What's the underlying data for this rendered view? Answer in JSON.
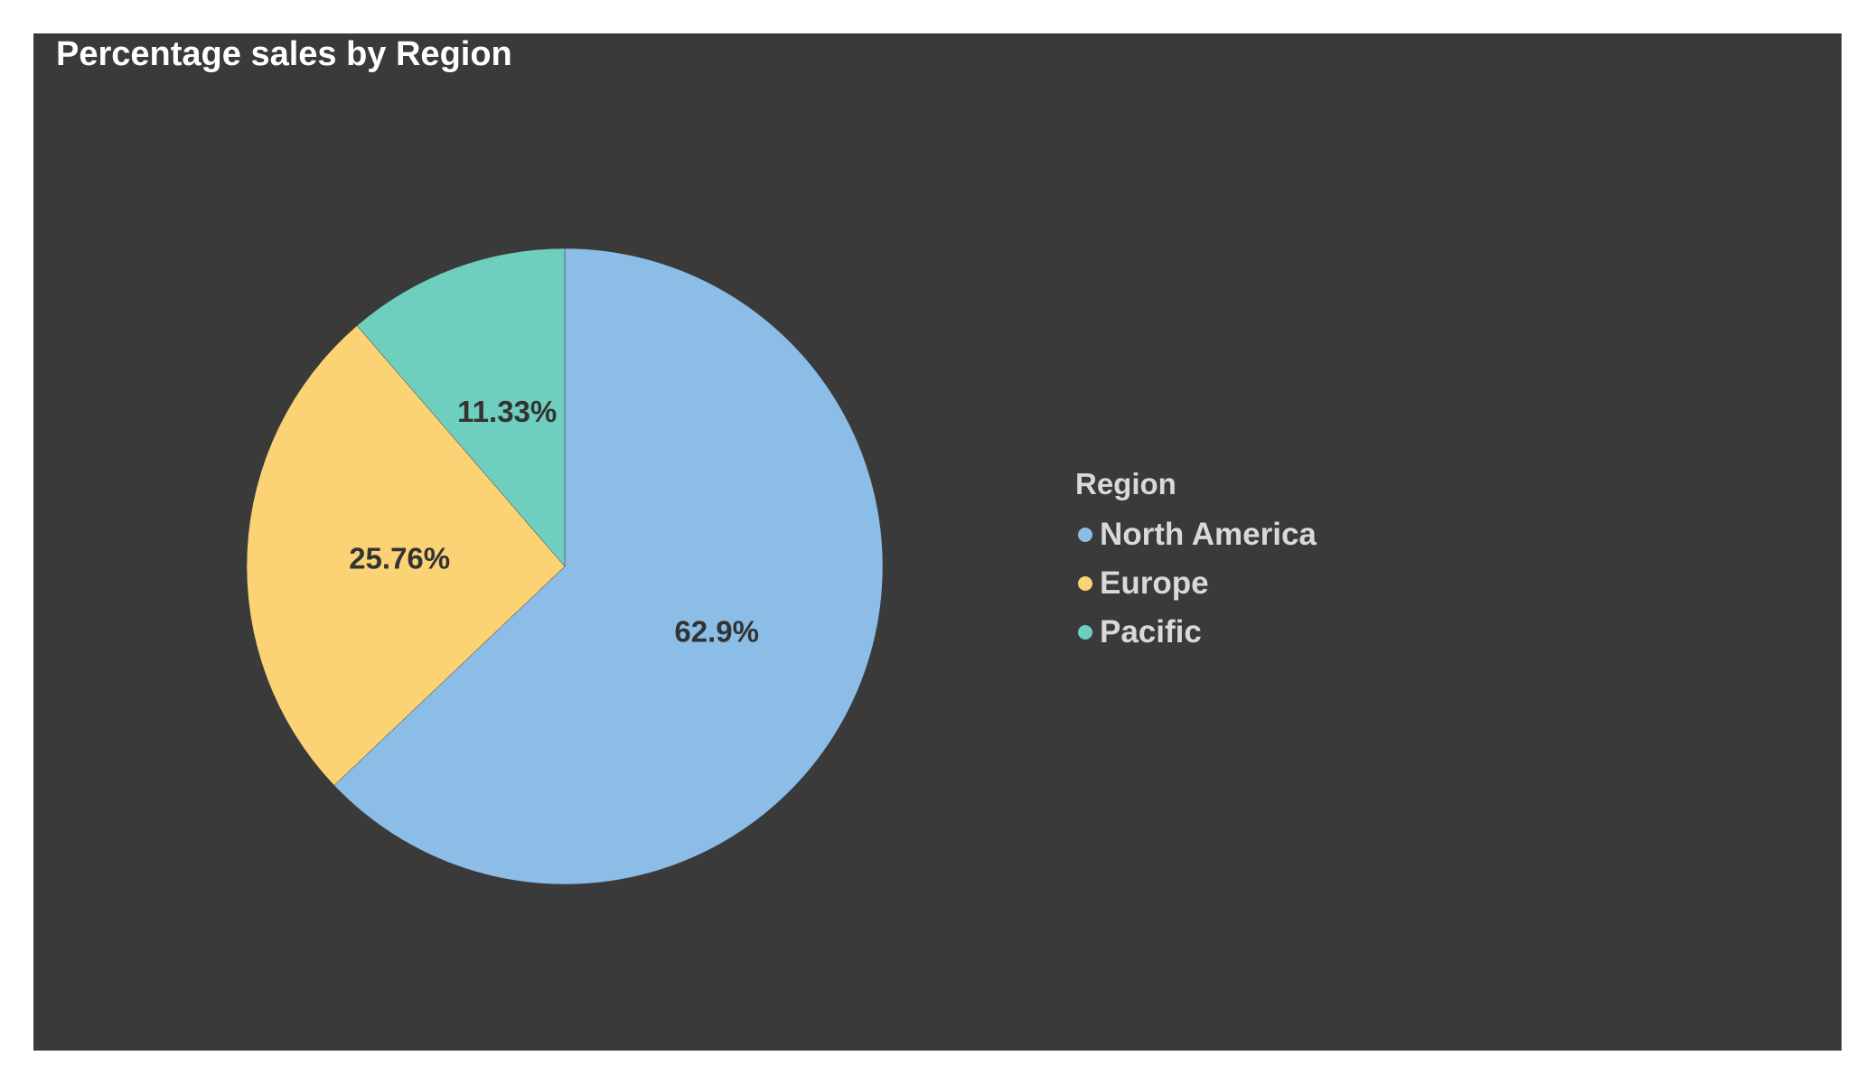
{
  "chart_data": {
    "type": "pie",
    "title": "Percentage sales by Region",
    "categories": [
      "North America",
      "Europe",
      "Pacific"
    ],
    "values": [
      62.9,
      25.76,
      11.33
    ],
    "labels": [
      "62.9%",
      "25.76%",
      "11.33%"
    ],
    "colors": [
      "#8bbde6",
      "#fcd374",
      "#6ecfbf"
    ],
    "legend": {
      "title": "Region",
      "placement": "right"
    }
  }
}
